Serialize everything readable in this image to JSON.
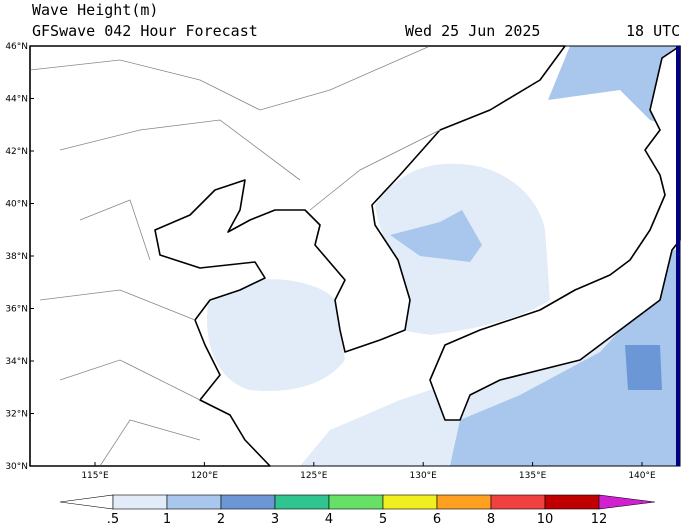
{
  "header": {
    "title": "Wave Height(m)",
    "subtitle": "GFSwave 042 Hour Forecast",
    "date": "Wed 25 Jun 2025",
    "time": "18 UTC"
  },
  "map": {
    "lat_labels": [
      "30°N",
      "32°N",
      "34°N",
      "36°N",
      "38°N",
      "40°N",
      "42°N",
      "44°N",
      "46°N"
    ],
    "lon_labels": [
      "115°E",
      "120°E",
      "125°E",
      "130°E",
      "135°E",
      "140°E"
    ]
  },
  "colorbar": {
    "ticks": [
      {
        "value": 0.5,
        "label": ".5"
      },
      1,
      2,
      3,
      4,
      5,
      6,
      8,
      10,
      12
    ],
    "colors": [
      "#ffffff",
      "#e1ecf8",
      "#a9c6ec",
      "#6b97d6",
      "#2fc490",
      "#66e066",
      "#f0f020",
      "#ffa020",
      "#f04040",
      "#c00000",
      "#d020d0"
    ]
  }
}
